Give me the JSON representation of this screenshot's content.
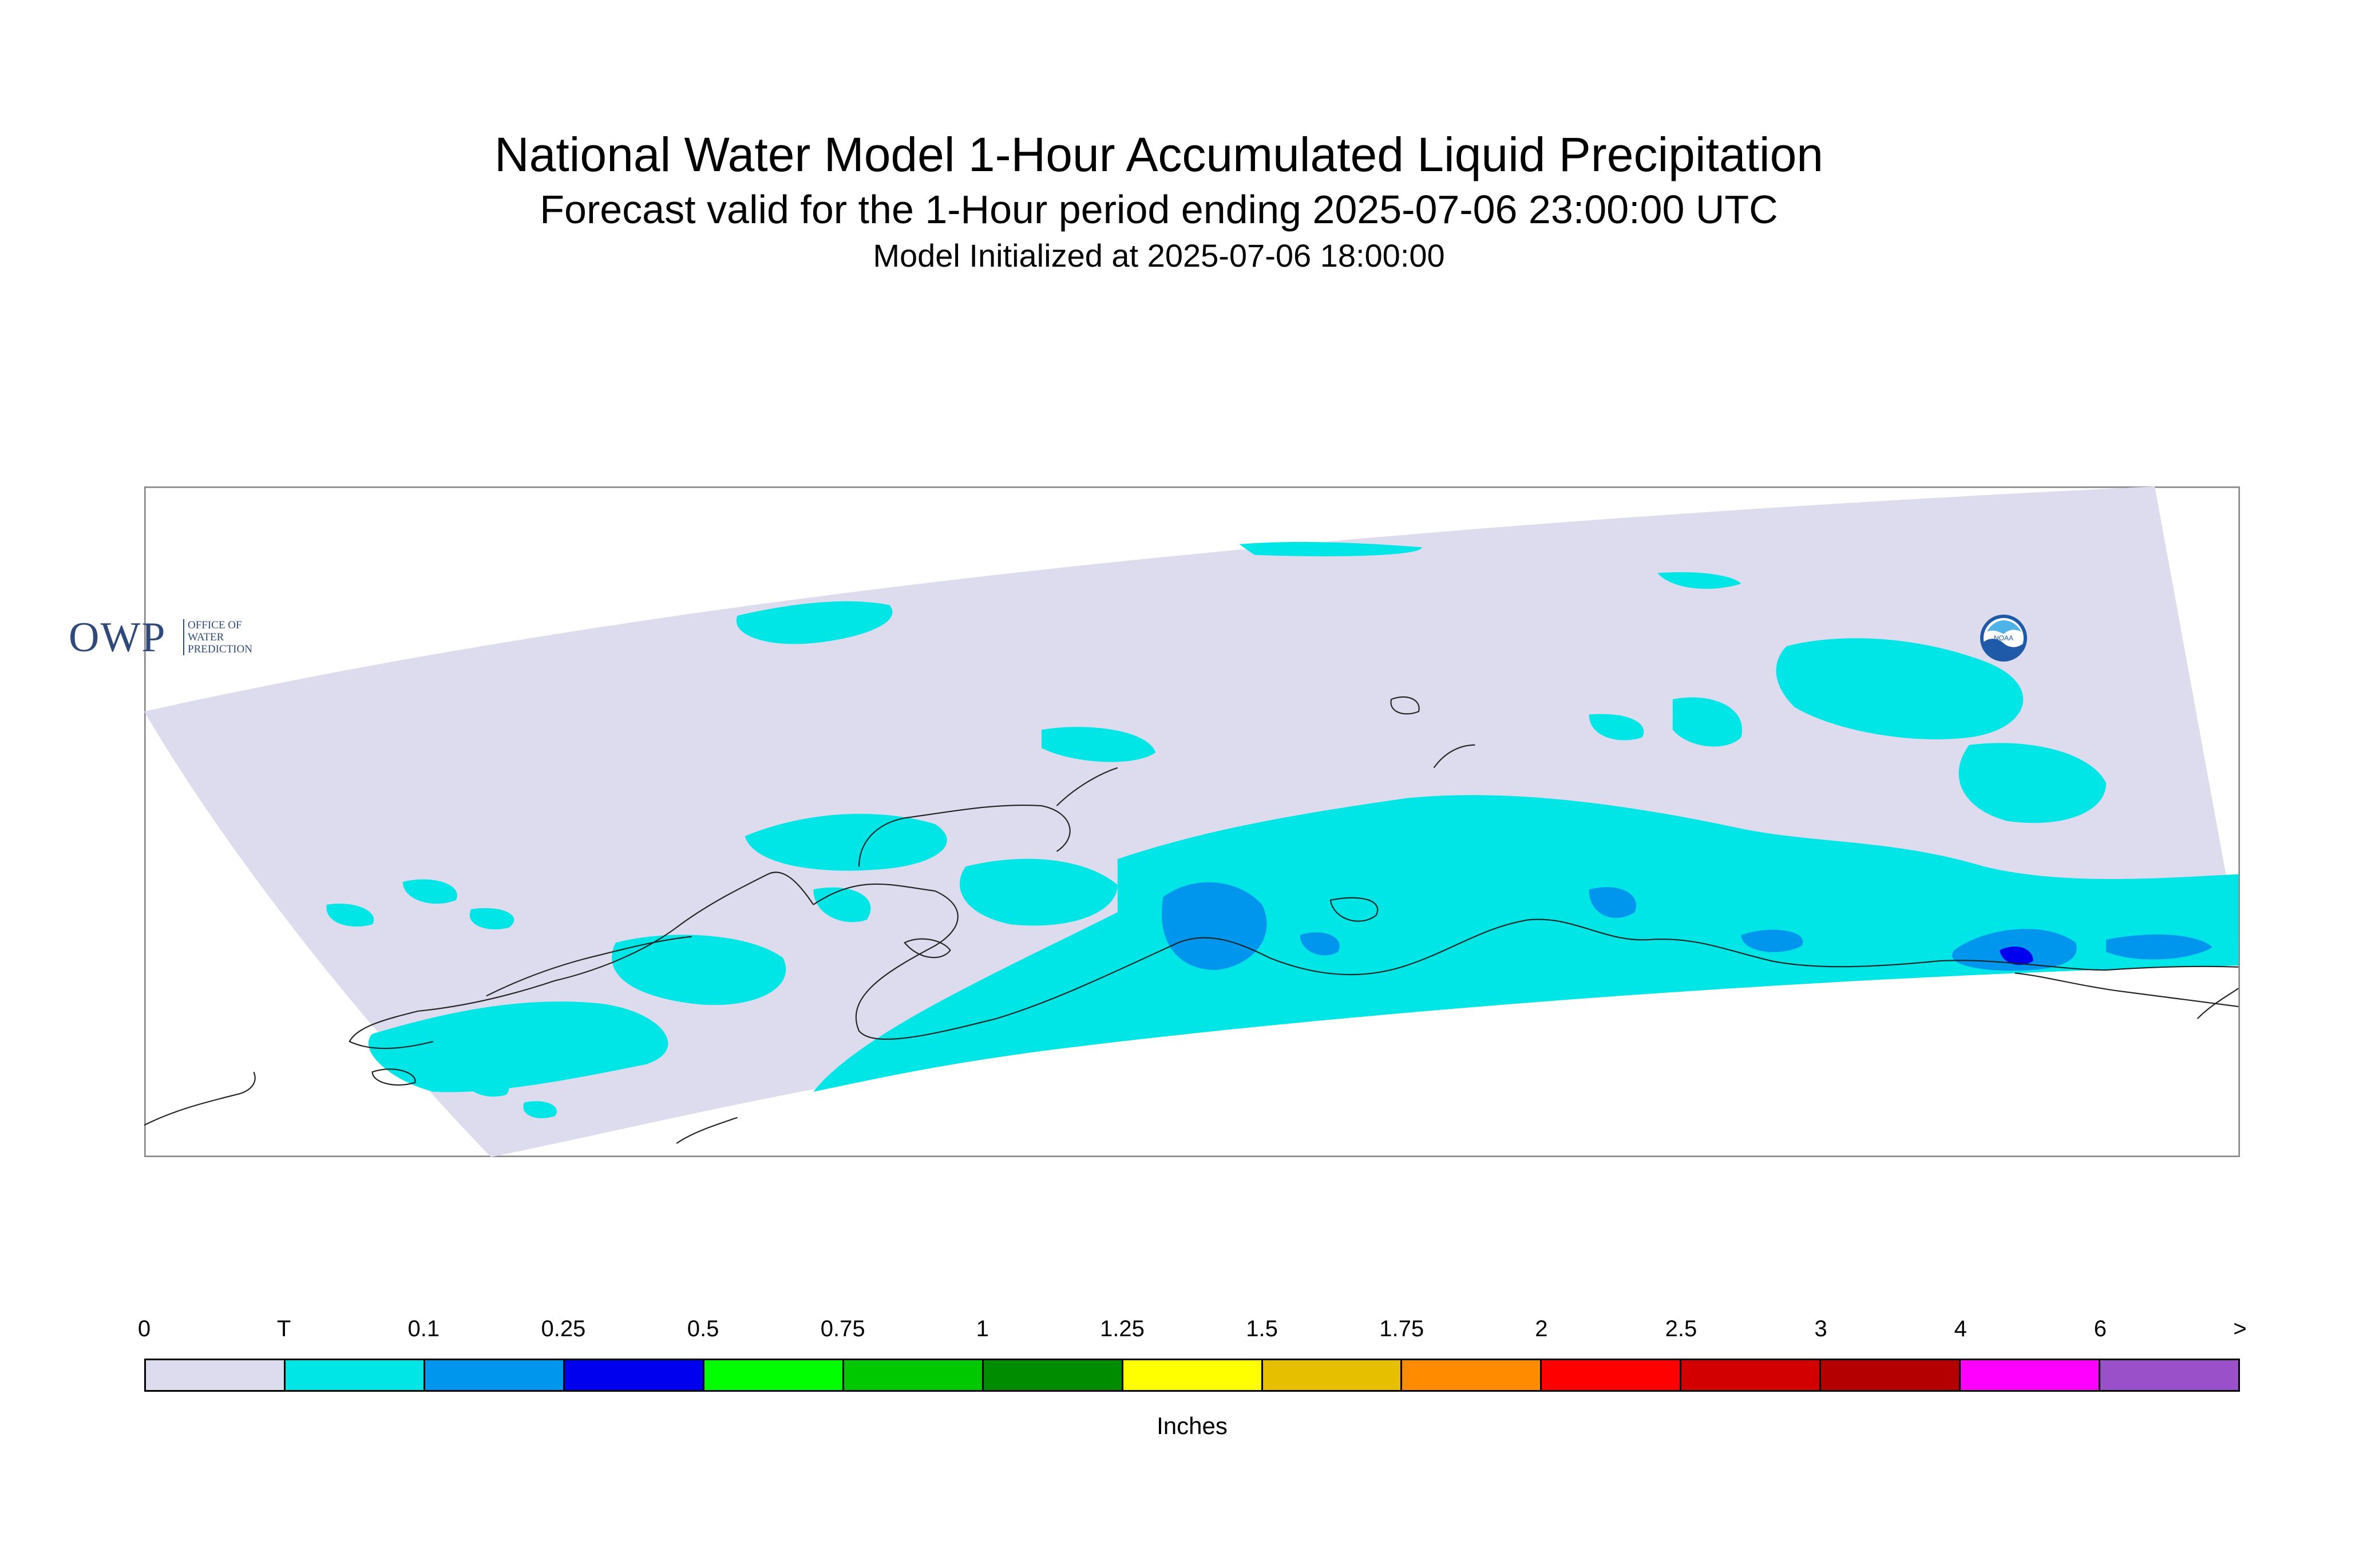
{
  "title": "National Water Model 1-Hour Accumulated Liquid Precipitation",
  "subtitle": "Forecast valid for the 1-Hour period ending 2025-07-06 23:00:00 UTC",
  "init_line": "Model Initialized at 2025-07-06 18:00:00",
  "logos": {
    "owp_letters": "OWP",
    "owp_text": "OFFICE OF WATER PREDICTION",
    "noaa_text": "NOAA"
  },
  "legend": {
    "units_label": "Inches",
    "tick_labels": [
      "0",
      "T",
      "0.1",
      "0.25",
      "0.5",
      "0.75",
      "1",
      "1.25",
      "1.5",
      "1.75",
      "2",
      "2.5",
      "3",
      "4",
      "6",
      ">"
    ],
    "bins": [
      {
        "range": "0 - T",
        "color": "#dcdcee"
      },
      {
        "range": "T - 0.1",
        "color": "#00e5e5"
      },
      {
        "range": "0.1 - 0.25",
        "color": "#0096ee"
      },
      {
        "range": "0.25 - 0.5",
        "color": "#0000ee"
      },
      {
        "range": "0.5 - 0.75",
        "color": "#00ff00"
      },
      {
        "range": "0.75 - 1",
        "color": "#00c800"
      },
      {
        "range": "1 - 1.25",
        "color": "#008c00"
      },
      {
        "range": "1.25 - 1.5",
        "color": "#ffff00"
      },
      {
        "range": "1.5 - 1.75",
        "color": "#e6c000"
      },
      {
        "range": "1.75 - 2",
        "color": "#ff8c00"
      },
      {
        "range": "2 - 2.5",
        "color": "#ff0000"
      },
      {
        "range": "2.5 - 3",
        "color": "#d20000"
      },
      {
        "range": "3 - 4",
        "color": "#b40000"
      },
      {
        "range": "4 - 6",
        "color": "#ff00ff"
      },
      {
        "range": "6 - >",
        "color": "#9a50c8"
      }
    ]
  },
  "map": {
    "region": "Alaska",
    "domain_fill": "#dcdcee",
    "coastline_color": "#222222"
  }
}
